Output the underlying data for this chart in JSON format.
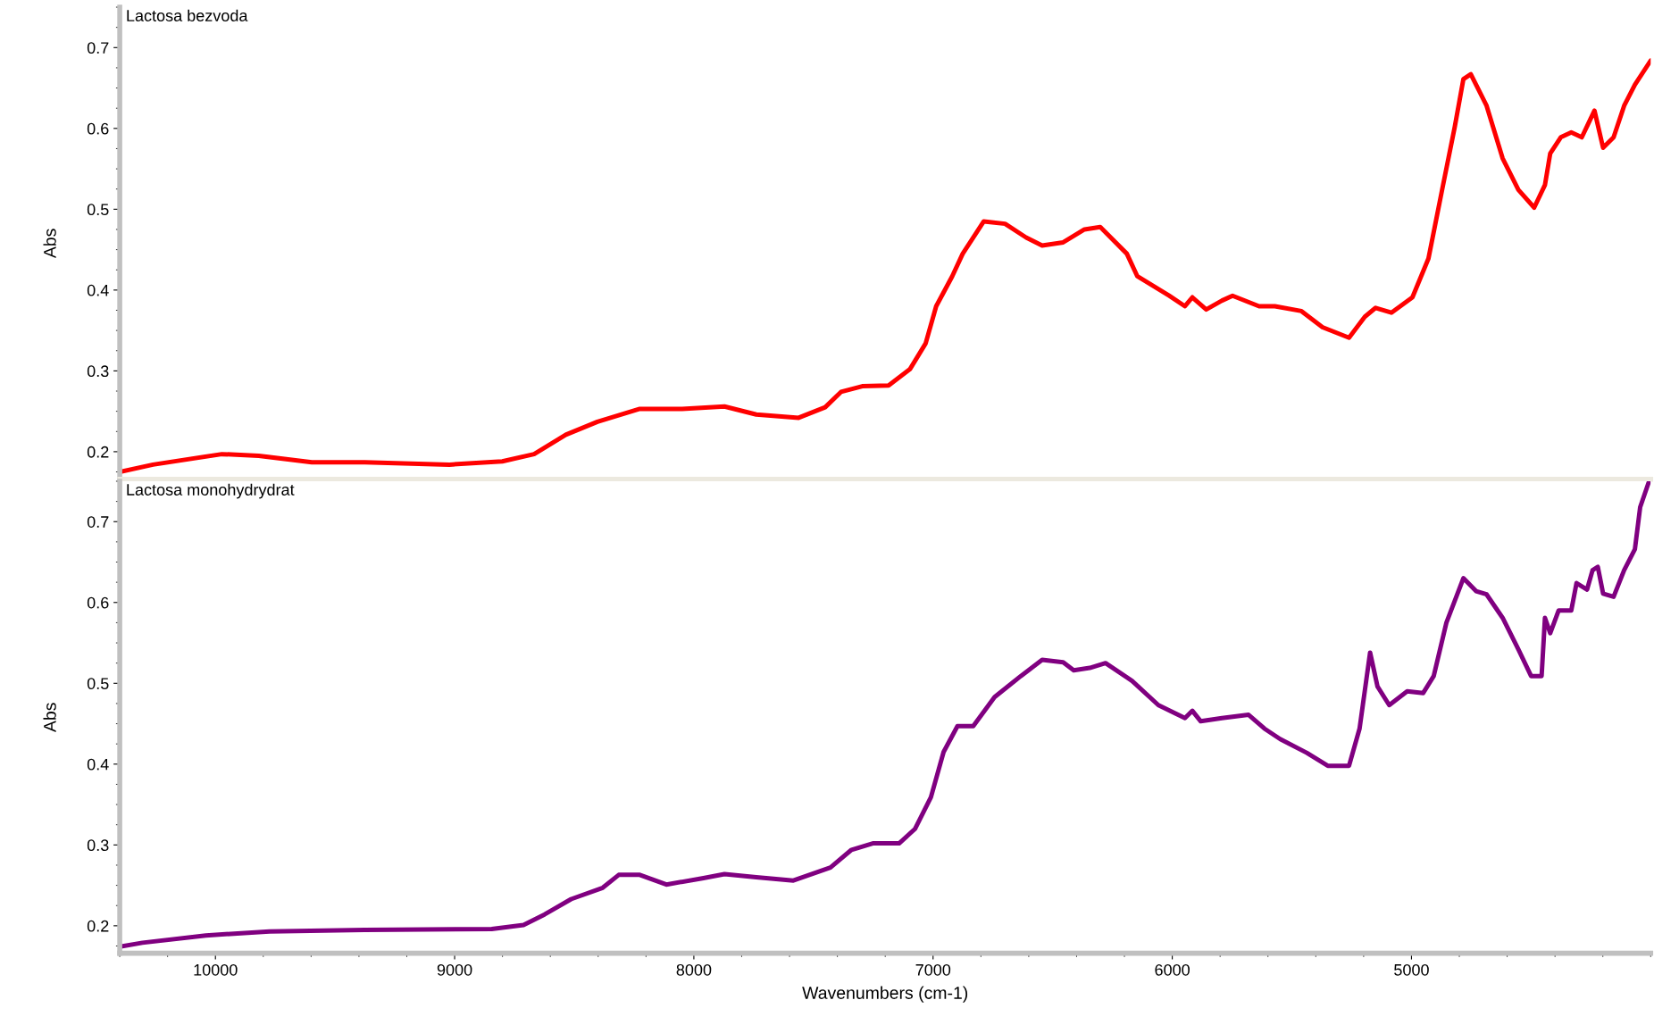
{
  "chart_data": [
    {
      "type": "line",
      "title": "Lactosa bezvoda",
      "ylabel": "Abs",
      "xlim": [
        10400,
        4000
      ],
      "ylim": [
        0.166,
        0.75
      ],
      "yticks": [
        0.2,
        0.3,
        0.4,
        0.5,
        0.6,
        0.7
      ],
      "xticks": [
        10000,
        9000,
        8000,
        7000,
        6000,
        5000
      ],
      "tick_labels": "y",
      "grid": false,
      "legend": false,
      "series": [
        {
          "color": "#ff0000",
          "x": [
            10400,
            10261,
            9973,
            9819,
            9597,
            9376,
            9022,
            8801,
            8668,
            8535,
            8403,
            8226,
            8049,
            7872,
            7739,
            7562,
            7451,
            7385,
            7296,
            7186,
            7097,
            7031,
            6987,
            6920,
            6876,
            6788,
            6699,
            6611,
            6544,
            6456,
            6367,
            6301,
            6190,
            6146,
            6013,
            5947,
            5916,
            5858,
            5792,
            5748,
            5637,
            5571,
            5460,
            5372,
            5261,
            5195,
            5150,
            5084,
            4996,
            4929,
            4872,
            4819,
            4783,
            4752,
            4686,
            4619,
            4553,
            4487,
            4442,
            4420,
            4376,
            4332,
            4288,
            4235,
            4199,
            4155,
            4111,
            4066,
            4000
          ],
          "values": [
            0.175,
            0.184,
            0.197,
            0.195,
            0.187,
            0.187,
            0.184,
            0.188,
            0.197,
            0.221,
            0.237,
            0.253,
            0.253,
            0.256,
            0.246,
            0.242,
            0.255,
            0.274,
            0.281,
            0.282,
            0.302,
            0.334,
            0.38,
            0.417,
            0.445,
            0.485,
            0.482,
            0.465,
            0.455,
            0.459,
            0.475,
            0.478,
            0.445,
            0.417,
            0.393,
            0.38,
            0.391,
            0.376,
            0.387,
            0.393,
            0.38,
            0.38,
            0.374,
            0.354,
            0.341,
            0.367,
            0.378,
            0.372,
            0.391,
            0.439,
            0.524,
            0.602,
            0.661,
            0.667,
            0.628,
            0.563,
            0.524,
            0.502,
            0.53,
            0.569,
            0.589,
            0.595,
            0.589,
            0.622,
            0.576,
            0.589,
            0.628,
            0.654,
            0.684
          ]
        }
      ]
    },
    {
      "type": "line",
      "title": "Lactosa monohydrydrat",
      "ylabel": "Abs",
      "xlabel": "Wavenumbers (cm-1)",
      "xlim": [
        10400,
        4000
      ],
      "ylim": [
        0.166,
        0.75
      ],
      "yticks": [
        0.2,
        0.3,
        0.4,
        0.5,
        0.6,
        0.7
      ],
      "xticks": [
        10000,
        9000,
        8000,
        7000,
        6000,
        5000
      ],
      "grid": false,
      "legend": false,
      "series": [
        {
          "color": "#800080",
          "x": [
            10400,
            10305,
            10040,
            9774,
            9376,
            8845,
            8712,
            8624,
            8513,
            8381,
            8314,
            8226,
            8115,
            7960,
            7872,
            7739,
            7584,
            7429,
            7341,
            7252,
            7142,
            7075,
            7009,
            6956,
            6898,
            6832,
            6743,
            6633,
            6544,
            6456,
            6412,
            6345,
            6279,
            6168,
            6058,
            5947,
            5916,
            5881,
            5792,
            5681,
            5615,
            5549,
            5438,
            5350,
            5261,
            5217,
            5173,
            5142,
            5093,
            5018,
            4951,
            4907,
            4854,
            4783,
            4730,
            4686,
            4619,
            4553,
            4500,
            4456,
            4442,
            4420,
            4385,
            4332,
            4310,
            4266,
            4243,
            4221,
            4199,
            4155,
            4111,
            4066,
            4044,
            4009
          ],
          "values": [
            0.174,
            0.179,
            0.188,
            0.193,
            0.195,
            0.196,
            0.201,
            0.214,
            0.233,
            0.247,
            0.263,
            0.263,
            0.251,
            0.259,
            0.264,
            0.26,
            0.256,
            0.272,
            0.294,
            0.302,
            0.302,
            0.32,
            0.359,
            0.415,
            0.447,
            0.447,
            0.483,
            0.509,
            0.529,
            0.526,
            0.516,
            0.519,
            0.525,
            0.503,
            0.473,
            0.457,
            0.466,
            0.453,
            0.457,
            0.461,
            0.444,
            0.431,
            0.414,
            0.398,
            0.398,
            0.444,
            0.538,
            0.496,
            0.473,
            0.49,
            0.488,
            0.509,
            0.575,
            0.63,
            0.614,
            0.61,
            0.581,
            0.542,
            0.509,
            0.509,
            0.581,
            0.562,
            0.59,
            0.59,
            0.624,
            0.616,
            0.64,
            0.644,
            0.611,
            0.607,
            0.64,
            0.666,
            0.718,
            0.748
          ]
        }
      ]
    }
  ]
}
